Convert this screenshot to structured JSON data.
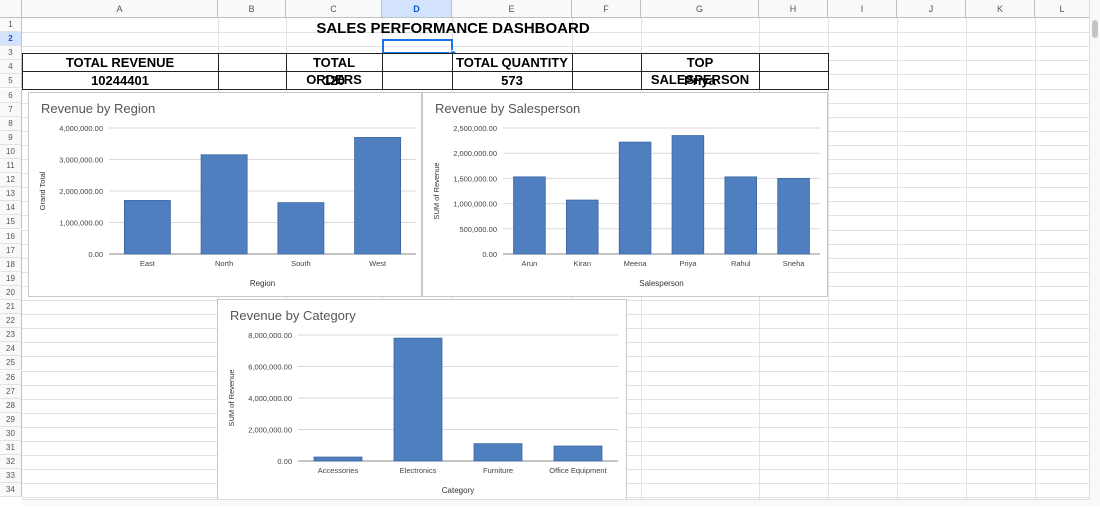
{
  "sheet": {
    "columns": [
      "A",
      "B",
      "C",
      "D",
      "E",
      "F",
      "G",
      "H",
      "I",
      "J",
      "K",
      "L"
    ],
    "rows": [
      "1",
      "2",
      "3",
      "4",
      "5",
      "6",
      "7",
      "8",
      "9",
      "10",
      "11",
      "12",
      "13",
      "14",
      "15",
      "16",
      "17",
      "18",
      "19",
      "20",
      "21",
      "22",
      "23",
      "24",
      "25",
      "26",
      "27",
      "28",
      "29",
      "30",
      "31",
      "32",
      "33",
      "34"
    ],
    "selected_column": "D",
    "selected_row": "2"
  },
  "dashboard": {
    "title": "SALES PERFORMANCE DASHBOARD",
    "kpis": [
      {
        "label": "TOTAL REVENUE",
        "value": "10244401"
      },
      {
        "label": "TOTAL ORDERS",
        "value": "120"
      },
      {
        "label": "TOTAL QUANTITY",
        "value": "573"
      },
      {
        "label": "TOP SALESPERSON",
        "value": "Priya"
      }
    ]
  },
  "colors": {
    "bar": "#4f7fbf",
    "bar_stroke": "#3b64a0",
    "grid": "#d9d9d9",
    "selection": "#1a73e8"
  },
  "chart_data": [
    {
      "type": "bar",
      "title": "Revenue by Region",
      "categories": [
        "East",
        "North",
        "South",
        "West"
      ],
      "values": [
        1700000,
        3150000,
        1630000,
        3700000
      ],
      "xlabel": "Region",
      "ylabel": "Grand Total",
      "ylim": [
        0,
        4000000
      ],
      "yticks": [
        "0.00",
        "1,000,000.00",
        "2,000,000.00",
        "3,000,000.00",
        "4,000,000.00"
      ],
      "grid": true
    },
    {
      "type": "bar",
      "title": "Revenue by Salesperson",
      "categories": [
        "Arun",
        "Kiran",
        "Meena",
        "Priya",
        "Rahul",
        "Sneha"
      ],
      "values": [
        1530000,
        1070000,
        2220000,
        2350000,
        1530000,
        1500000
      ],
      "xlabel": "Salesperson",
      "ylabel": "SUM of Revenue",
      "ylim": [
        0,
        2500000
      ],
      "yticks": [
        "0.00",
        "500,000.00",
        "1,000,000.00",
        "1,500,000.00",
        "2,000,000.00",
        "2,500,000.00"
      ],
      "grid": true
    },
    {
      "type": "bar",
      "title": "Revenue by Category",
      "categories": [
        "Accessories",
        "Electronics",
        "Furniture",
        "Office Equipment"
      ],
      "values": [
        250000,
        7800000,
        1100000,
        950000
      ],
      "xlabel": "Category",
      "ylabel": "SUM of Revenue",
      "ylim": [
        0,
        8000000
      ],
      "yticks": [
        "0.00",
        "2,000,000.00",
        "4,000,000.00",
        "6,000,000.00",
        "8,000,000.00"
      ],
      "grid": true
    }
  ]
}
